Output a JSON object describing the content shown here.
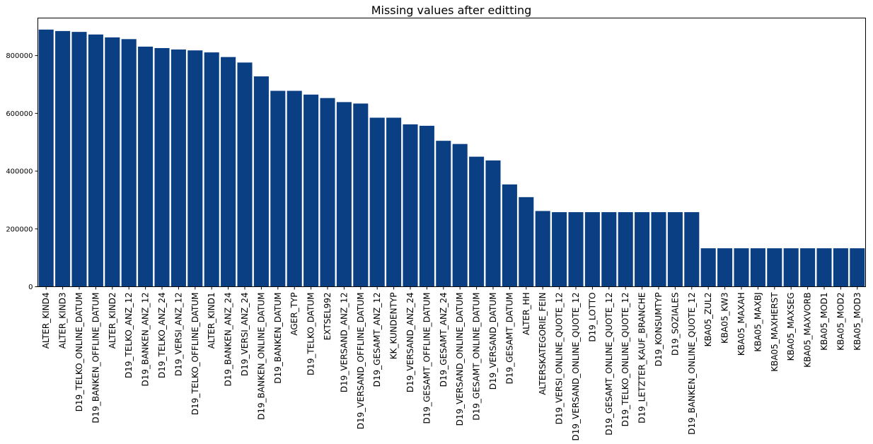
{
  "chart_data": {
    "type": "bar",
    "title": "Missing values after editting",
    "xlabel": "",
    "ylabel": "",
    "ylim": [
      0,
      930000
    ],
    "grid": false,
    "bar_color": "#0a3f83",
    "yticks": [
      0,
      200000,
      400000,
      600000,
      800000
    ],
    "ytick_labels": [
      "0",
      "200000",
      "400000",
      "600000",
      "800000"
    ],
    "categories": [
      "ALTER_KIND4",
      "ALTER_KIND3",
      "D19_TELKO_ONLINE_DATUM",
      "D19_BANKEN_OFFLINE_DATUM",
      "ALTER_KIND2",
      "D19_TELKO_ANZ_12",
      "D19_BANKEN_ANZ_12",
      "D19_TELKO_ANZ_24",
      "D19_VERSI_ANZ_12",
      "D19_TELKO_OFFLINE_DATUM",
      "ALTER_KIND1",
      "D19_BANKEN_ANZ_24",
      "D19_VERSI_ANZ_24",
      "D19_BANKEN_ONLINE_DATUM",
      "D19_BANKEN_DATUM",
      "AGER_TYP",
      "D19_TELKO_DATUM",
      "EXTSEL992",
      "D19_VERSAND_ANZ_12",
      "D19_VERSAND_OFFLINE_DATUM",
      "D19_GESAMT_ANZ_12",
      "KK_KUNDENTYP",
      "D19_VERSAND_ANZ_24",
      "D19_GESAMT_OFFLINE_DATUM",
      "D19_GESAMT_ANZ_24",
      "D19_VERSAND_ONLINE_DATUM",
      "D19_GESAMT_ONLINE_DATUM",
      "D19_VERSAND_DATUM",
      "D19_GESAMT_DATUM",
      "ALTER_HH",
      "ALTERSKATEGORIE_FEIN",
      "D19_VERSI_ONLINE_QUOTE_12",
      "D19_VERSAND_ONLINE_QUOTE_12",
      "D19_LOTTO",
      "D19_GESAMT_ONLINE_QUOTE_12",
      "D19_TELKO_ONLINE_QUOTE_12",
      "D19_LETZTER_KAUF_BRANCHE",
      "D19_KONSUMTYP",
      "D19_SOZIALES",
      "D19_BANKEN_ONLINE_QUOTE_12",
      "KBA05_ZUL2",
      "KBA05_KW3",
      "KBA05_MAXAH",
      "KBA05_MAXBJ",
      "KBA05_MAXHERST",
      "KBA05_MAXSEG",
      "KBA05_MAXVORB",
      "KBA05_MOD1",
      "KBA05_MOD2",
      "KBA05_MOD3"
    ],
    "values": [
      890000,
      885000,
      882000,
      873000,
      863000,
      857000,
      831000,
      826000,
      821000,
      818000,
      811000,
      795000,
      776000,
      728000,
      678000,
      678000,
      665000,
      653000,
      639000,
      634000,
      585000,
      585000,
      562000,
      557000,
      505000,
      494000,
      450000,
      437000,
      354000,
      310000,
      262000,
      258000,
      258000,
      258000,
      258000,
      258000,
      258000,
      258000,
      258000,
      258000,
      133000,
      133000,
      133000,
      133000,
      133000,
      133000,
      133000,
      133000,
      133000,
      133000
    ]
  }
}
